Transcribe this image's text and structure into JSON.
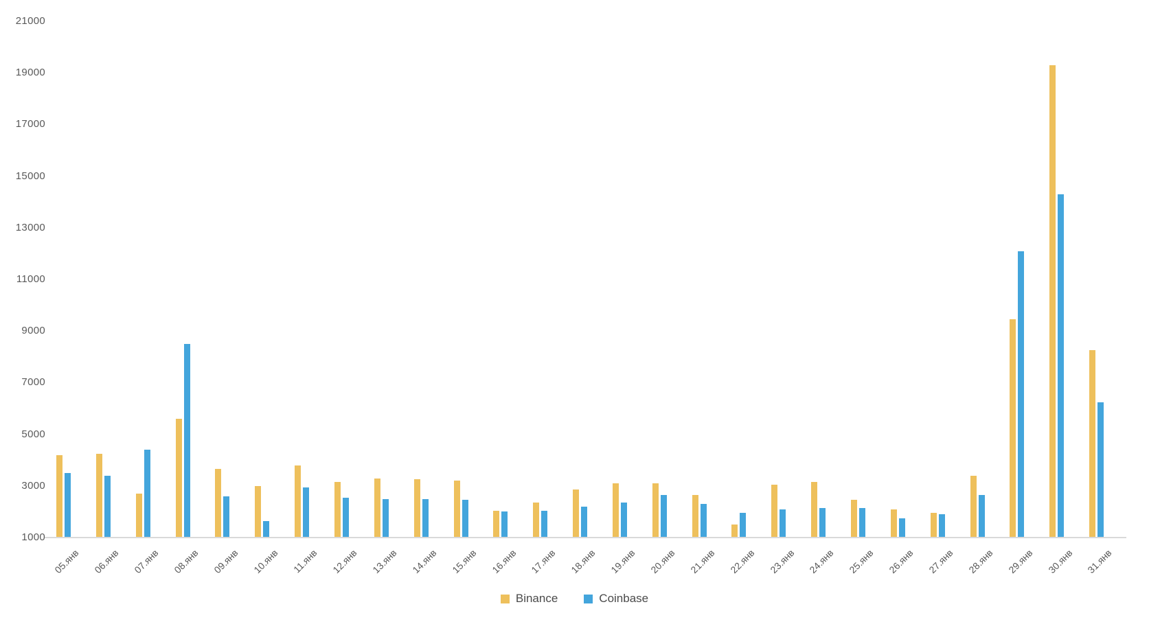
{
  "chart_data": {
    "type": "bar",
    "title": "",
    "xlabel": "",
    "ylabel": "",
    "categories": [
      "05.янв",
      "06.янв",
      "07.янв",
      "08.янв",
      "09.янв",
      "10.янв",
      "11.янв",
      "12.янв",
      "13.янв",
      "14.янв",
      "15.янв",
      "16.янв",
      "17.янв",
      "18.янв",
      "19.янв",
      "20.янв",
      "21.янв",
      "22.янв",
      "23.янв",
      "24.янв",
      "25.янв",
      "26.янв",
      "27.янв",
      "28.янв",
      "29.янв",
      "30.янв",
      "31.янв"
    ],
    "series": [
      {
        "name": "Binance",
        "color": "#eec05c",
        "values": [
          4200,
          4250,
          2700,
          5600,
          3650,
          3000,
          3800,
          3150,
          3300,
          3250,
          3200,
          2050,
          2350,
          2850,
          3100,
          3100,
          2650,
          1500,
          3050,
          3150,
          2450,
          2100,
          1950,
          3400,
          9450,
          19300,
          8250
        ]
      },
      {
        "name": "Coinbase",
        "color": "#43a5dc",
        "values": [
          3500,
          3400,
          4400,
          8500,
          2600,
          1650,
          2950,
          2550,
          2500,
          2500,
          2450,
          2000,
          2050,
          2200,
          2350,
          2650,
          2300,
          1950,
          2100,
          2150,
          2150,
          1750,
          1900,
          2650,
          12100,
          14300,
          6250
        ]
      }
    ],
    "yaxis": {
      "min": 1000,
      "max": 21000,
      "tick_step": 2000,
      "ticks": [
        21000,
        19000,
        17000,
        15000,
        13000,
        11000,
        9000,
        7000,
        5000,
        3000,
        1000
      ]
    },
    "grid": "off",
    "legend_position": "bottom-center",
    "axis_line_color": "#d9d9d9",
    "tick_label_color": "#595959"
  }
}
